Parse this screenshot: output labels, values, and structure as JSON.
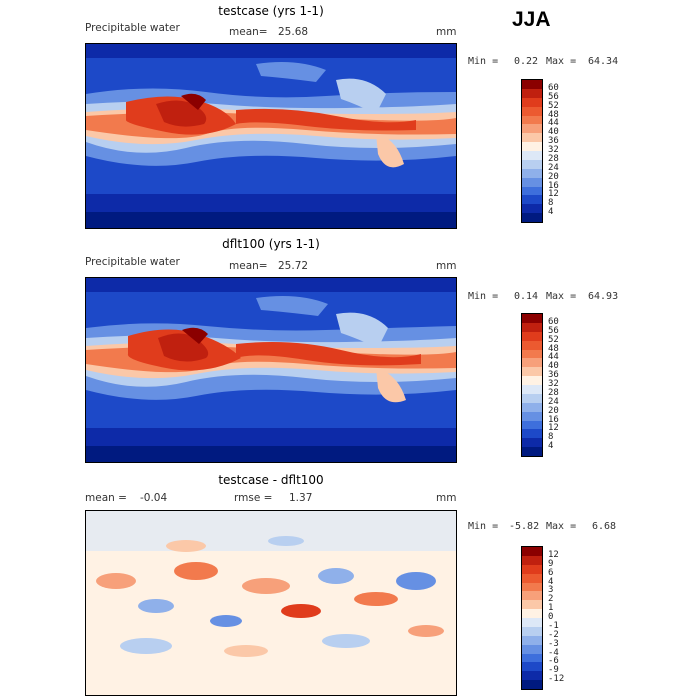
{
  "season": "JJA",
  "panels": [
    {
      "title": "testcase (yrs 1-1)",
      "variable": "Precipitable water",
      "stats_left": "",
      "mean_label": "mean=",
      "mean_value": "25.68",
      "units": "mm",
      "min_label": "Min =",
      "min_value": "0.22",
      "max_label": "Max =",
      "max_value": "64.34",
      "colorbar_ticks": [
        "60",
        "56",
        "52",
        "48",
        "44",
        "40",
        "36",
        "32",
        "28",
        "24",
        "20",
        "16",
        "12",
        "8",
        "4"
      ],
      "colorbar_colors": [
        "#8b0000",
        "#c0200f",
        "#e03c1c",
        "#ec5a30",
        "#f27a4d",
        "#f7a07a",
        "#fbc8a8",
        "#fff2e4",
        "#dde8f7",
        "#b8cff0",
        "#8fb0ea",
        "#6690e3",
        "#3e6fdc",
        "#1d49c8",
        "#0d2aa8",
        "#001a80"
      ]
    },
    {
      "title": "dflt100 (yrs 1-1)",
      "variable": "Precipitable water",
      "mean_label": "mean=",
      "mean_value": "25.72",
      "units": "mm",
      "min_label": "Min =",
      "min_value": "0.14",
      "max_label": "Max =",
      "max_value": "64.93",
      "colorbar_ticks": [
        "60",
        "56",
        "52",
        "48",
        "44",
        "40",
        "36",
        "32",
        "28",
        "24",
        "20",
        "16",
        "12",
        "8",
        "4"
      ],
      "colorbar_colors": [
        "#8b0000",
        "#c0200f",
        "#e03c1c",
        "#ec5a30",
        "#f27a4d",
        "#f7a07a",
        "#fbc8a8",
        "#fff2e4",
        "#dde8f7",
        "#b8cff0",
        "#8fb0ea",
        "#6690e3",
        "#3e6fdc",
        "#1d49c8",
        "#0d2aa8",
        "#001a80"
      ]
    },
    {
      "title": "testcase - dflt100",
      "mean_label": "mean =",
      "mean_value": "-0.04",
      "rmse_label": "rmse =",
      "rmse_value": "1.37",
      "units": "mm",
      "min_label": "Min =",
      "min_value": "-5.82",
      "max_label": "Max =",
      "max_value": "6.68",
      "colorbar_ticks": [
        "12",
        "9",
        "6",
        "4",
        "3",
        "2",
        "1",
        "0",
        "-1",
        "-2",
        "-3",
        "-4",
        "-6",
        "-9",
        "-12"
      ],
      "colorbar_colors": [
        "#8b0000",
        "#c0200f",
        "#e03c1c",
        "#ec5a30",
        "#f27a4d",
        "#f7a07a",
        "#fbc8a8",
        "#fff2e4",
        "#dde8f7",
        "#b8cff0",
        "#8fb0ea",
        "#6690e3",
        "#3e6fdc",
        "#1d49c8",
        "#0d2aa8",
        "#001a80"
      ]
    }
  ]
}
